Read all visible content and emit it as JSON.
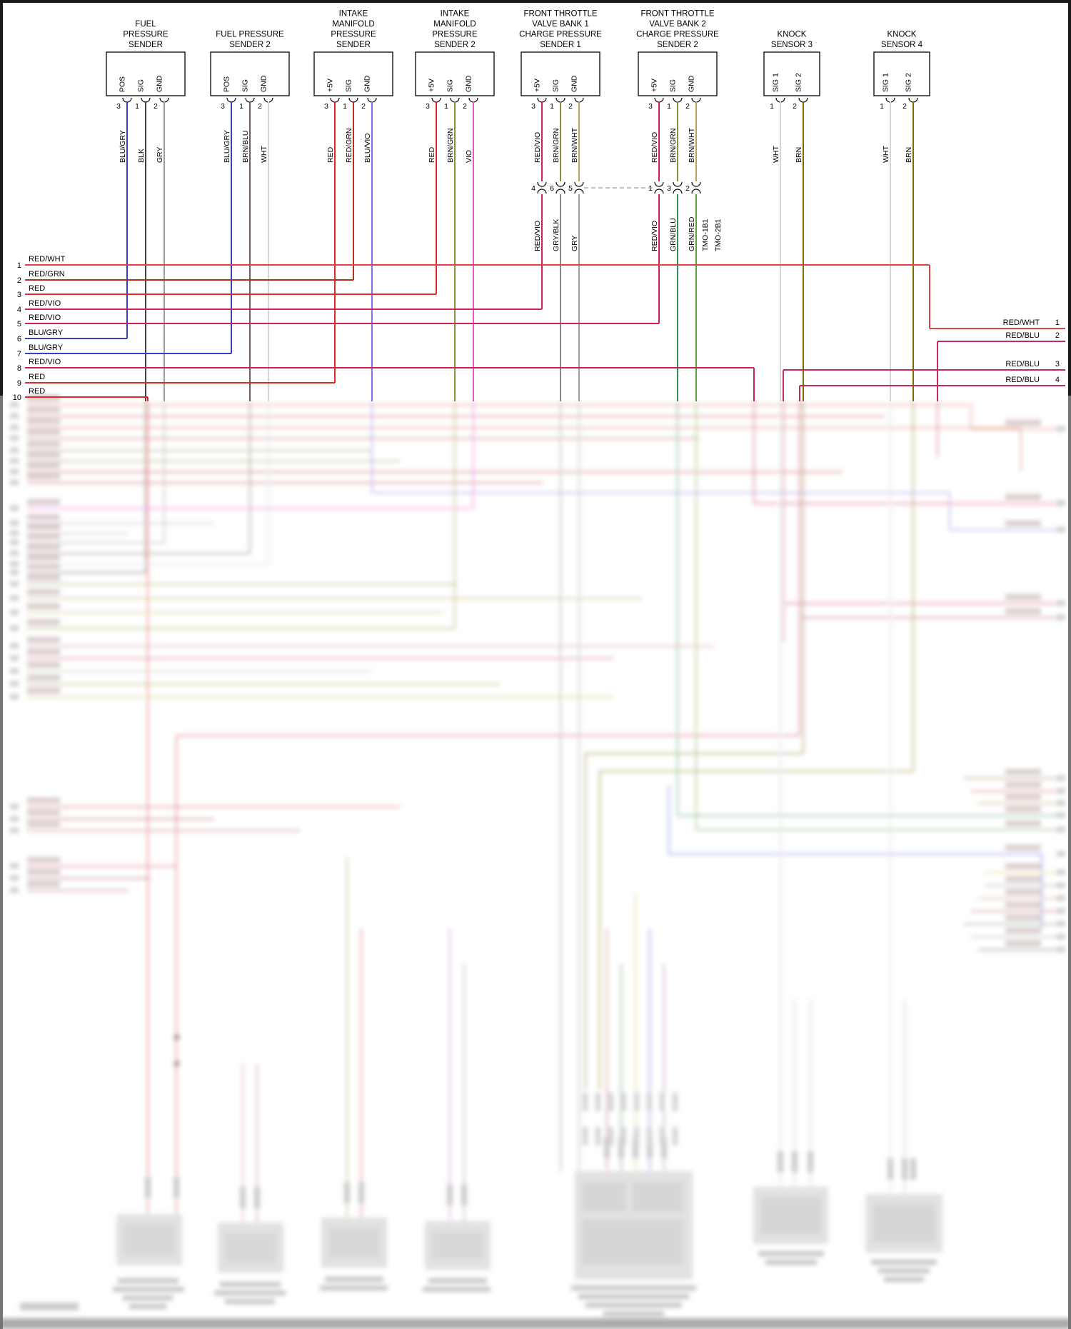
{
  "page": {
    "type": "automotive-wiring-diagram"
  },
  "connectors": [
    {
      "title": [
        "FUEL",
        "PRESSURE",
        "SENDER"
      ],
      "pins": [
        {
          "label": "POS",
          "num": "3",
          "wire": "BLU/GRY"
        },
        {
          "label": "SIG",
          "num": "1",
          "wire": "BLK"
        },
        {
          "label": "GND",
          "num": "2",
          "wire": "GRY"
        }
      ]
    },
    {
      "title": [
        "FUEL PRESSURE",
        "SENDER 2"
      ],
      "pins": [
        {
          "label": "POS",
          "num": "3",
          "wire": "BLU/GRY"
        },
        {
          "label": "SIG",
          "num": "1",
          "wire": "BRN/BLU"
        },
        {
          "label": "GND",
          "num": "2",
          "wire": "WHT"
        }
      ]
    },
    {
      "title": [
        "INTAKE",
        "MANIFOLD",
        "PRESSURE",
        "SENDER"
      ],
      "pins": [
        {
          "label": "+5V",
          "num": "3",
          "wire": "RED"
        },
        {
          "label": "SIG",
          "num": "1",
          "wire": "RED/GRN"
        },
        {
          "label": "GND",
          "num": "2",
          "wire": "BLU/VIO"
        }
      ]
    },
    {
      "title": [
        "INTAKE",
        "MANIFOLD",
        "PRESSURE",
        "SENDER 2"
      ],
      "pins": [
        {
          "label": "+5V",
          "num": "3",
          "wire": "RED"
        },
        {
          "label": "SIG",
          "num": "1",
          "wire": "BRN/GRN"
        },
        {
          "label": "GND",
          "num": "2",
          "wire": "VIO"
        }
      ]
    },
    {
      "title": [
        "FRONT THROTTLE",
        "VALVE BANK 1",
        "CHARGE PRESSURE",
        "SENDER 1"
      ],
      "pins": [
        {
          "label": "+5V",
          "num": "3",
          "wire": "RED/VIO"
        },
        {
          "label": "SIG",
          "num": "1",
          "wire": "BRN/GRN"
        },
        {
          "label": "GND",
          "num": "2",
          "wire": "BRN/WHT"
        }
      ]
    },
    {
      "title": [
        "FRONT THROTTLE",
        "VALVE BANK 2",
        "CHARGE PRESSURE",
        "SENDER 2"
      ],
      "pins": [
        {
          "label": "+5V",
          "num": "3",
          "wire": "RED/VIO"
        },
        {
          "label": "SIG",
          "num": "1",
          "wire": "BRN/GRN"
        },
        {
          "label": "GND",
          "num": "2",
          "wire": "BRN/WHT"
        }
      ]
    },
    {
      "title": [
        "KNOCK",
        "SENSOR 3"
      ],
      "pins": [
        {
          "label": "SIG 1",
          "num": "1",
          "wire": "WHT"
        },
        {
          "label": "SIG 2",
          "num": "2",
          "wire": "BRN"
        }
      ]
    },
    {
      "title": [
        "KNOCK",
        "SENSOR 4"
      ],
      "pins": [
        {
          "label": "SIG 1",
          "num": "1",
          "wire": "WHT"
        },
        {
          "label": "SIG 2",
          "num": "2",
          "wire": "BRN"
        }
      ]
    }
  ],
  "inline_connectors": [
    {
      "pins": [
        {
          "num": "4",
          "wire": "RED/VIO"
        },
        {
          "num": "6",
          "wire": "GRY/BLK"
        },
        {
          "num": "5",
          "wire": "GRY"
        }
      ],
      "tags": []
    },
    {
      "pins": [
        {
          "num": "1",
          "wire": "RED/VIO"
        },
        {
          "num": "3",
          "wire": "GRN/BLU"
        },
        {
          "num": "2",
          "wire": "GRN/RED"
        }
      ],
      "tags": [
        "TMO-1B1",
        "TMO-2B1"
      ]
    }
  ],
  "left_bus": [
    {
      "num": "1",
      "label": "RED/WHT"
    },
    {
      "num": "2",
      "label": "RED/GRN"
    },
    {
      "num": "3",
      "label": "RED"
    },
    {
      "num": "4",
      "label": "RED/VIO"
    },
    {
      "num": "5",
      "label": "RED/VIO"
    },
    {
      "num": "6",
      "label": "BLU/GRY"
    },
    {
      "num": "7",
      "label": "BLU/GRY"
    },
    {
      "num": "8",
      "label": "RED/VIO"
    },
    {
      "num": "9",
      "label": "RED"
    },
    {
      "num": "10",
      "label": "RED"
    }
  ],
  "right_bus": [
    {
      "num": "1",
      "label": "RED/WHT"
    },
    {
      "num": "2",
      "label": "RED/BLU"
    },
    {
      "num": "3",
      "label": "RED/BLU"
    },
    {
      "num": "4",
      "label": "RED/BLU"
    }
  ],
  "wire_colors": {
    "RED": "#e02a2a",
    "RED/GRN": "#b23222",
    "RED/VIO": "#ce2158",
    "RED/WHT": "#e24444",
    "RED/BLU": "#c22b55",
    "BLU/GRY": "#3340c2",
    "BLU/VIO": "#8273e0",
    "BLK": "#404040",
    "GRY": "#9c9c9c",
    "GRY/BLK": "#868686",
    "WHT": "#d6d6d6",
    "BRN": "#7d6a00",
    "BRN/BLU": "#6e6058",
    "BRN/GRN": "#8f8f38",
    "BRN/WHT": "#b3a35c",
    "VIO": "#e457ce",
    "GRN/BLU": "#2e8f55",
    "GRN/RED": "#5f9f3f"
  }
}
